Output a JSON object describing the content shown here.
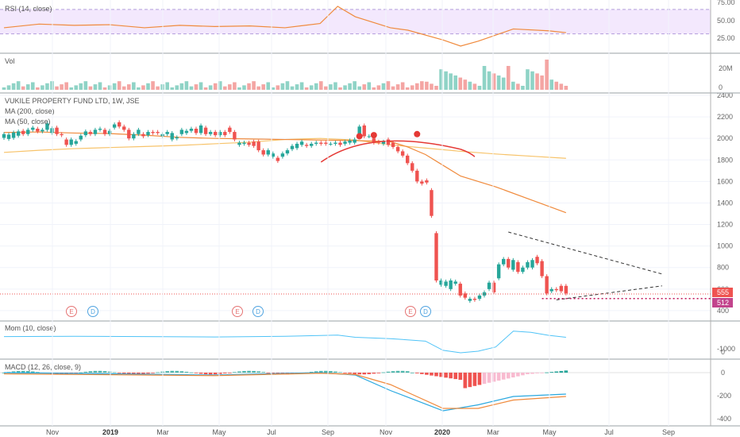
{
  "chart_data": {
    "type": "candlestick",
    "title": "VUKILE PROPERTY FUND LTD, 1W, JSE",
    "price_panel": {
      "ylim": [
        370,
        2400
      ],
      "y_ticks": [
        "400",
        "600",
        "800",
        "1000",
        "1200",
        "1400",
        "1600",
        "1800",
        "2000",
        "2200",
        "2400"
      ],
      "last_price_label": "555",
      "support_label": "512",
      "support_level": 512,
      "last_price": 555,
      "series": [
        {
          "name": "MA (200, close)",
          "color": "#f7c36a"
        },
        {
          "name": "MA (50, close)",
          "color": "#f08a3c"
        }
      ],
      "candles": [
        [
          2005,
          2040
        ],
        [
          1995,
          2035
        ],
        [
          2005,
          2055
        ],
        [
          2025,
          2065
        ],
        [
          2070,
          2040
        ],
        [
          2040,
          2080
        ],
        [
          2080,
          2100
        ],
        [
          2090,
          2065
        ],
        [
          2065,
          2080
        ],
        [
          2080,
          2140
        ],
        [
          2050,
          2095
        ],
        [
          2100,
          2040
        ],
        [
          2040,
          2030
        ],
        [
          1990,
          1940
        ],
        [
          1940,
          1990
        ],
        [
          1950,
          1975
        ],
        [
          1990,
          2025
        ],
        [
          2030,
          2065
        ],
        [
          2060,
          2040
        ],
        [
          2040,
          2080
        ],
        [
          2080,
          2090
        ],
        [
          2080,
          2040
        ],
        [
          2040,
          2070
        ],
        [
          2100,
          2130
        ],
        [
          2150,
          2110
        ],
        [
          2110,
          2080
        ],
        [
          2080,
          2000
        ],
        [
          2000,
          2040
        ],
        [
          2040,
          2080
        ],
        [
          2040,
          2020
        ],
        [
          2030,
          2060
        ],
        [
          2060,
          2050
        ],
        [
          2060,
          2050
        ],
        [
          2020,
          2040
        ],
        [
          2040,
          2060
        ],
        [
          1990,
          2050
        ],
        [
          2000,
          2010
        ],
        [
          2040,
          2080
        ],
        [
          2050,
          2070
        ],
        [
          2070,
          2090
        ],
        [
          2090,
          2050
        ],
        [
          2050,
          2120
        ],
        [
          2100,
          2040
        ],
        [
          2040,
          2060
        ],
        [
          2060,
          2030
        ],
        [
          2030,
          2060
        ],
        [
          2060,
          2030
        ],
        [
          2100,
          2060
        ],
        [
          2060,
          1990
        ],
        [
          1940,
          1960
        ],
        [
          1950,
          1960
        ],
        [
          1960,
          1940
        ],
        [
          1970,
          1930
        ],
        [
          1970,
          1890
        ],
        [
          1890,
          1850
        ],
        [
          1850,
          1890
        ],
        [
          1830,
          1860
        ],
        [
          1820,
          1790
        ],
        [
          1830,
          1860
        ],
        [
          1860,
          1890
        ],
        [
          1900,
          1930
        ],
        [
          1910,
          1950
        ],
        [
          1940,
          1970
        ],
        [
          1940,
          1930
        ],
        [
          1930,
          1950
        ],
        [
          1950,
          1960
        ],
        [
          1960,
          1950
        ],
        [
          1960,
          1950
        ],
        [
          1950,
          1950
        ],
        [
          1950,
          1960
        ],
        [
          1960,
          1940
        ],
        [
          1950,
          1970
        ],
        [
          1960,
          1980
        ],
        [
          1960,
          1990
        ],
        [
          2040,
          2110
        ],
        [
          2120,
          2020
        ],
        [
          2020,
          2020
        ],
        [
          2000,
          1960
        ],
        [
          1970,
          1960
        ],
        [
          1950,
          1970
        ],
        [
          1990,
          1940
        ],
        [
          1960,
          1920
        ],
        [
          1920,
          1880
        ],
        [
          1880,
          1840
        ],
        [
          1840,
          1770
        ],
        [
          1770,
          1700
        ],
        [
          1700,
          1600
        ],
        [
          1600,
          1580
        ],
        [
          1610,
          1590
        ],
        [
          1520,
          1280
        ],
        [
          1120,
          680
        ],
        [
          640,
          680
        ],
        [
          630,
          670
        ],
        [
          600,
          680
        ],
        [
          650,
          670
        ],
        [
          650,
          540
        ],
        [
          560,
          520
        ],
        [
          490,
          510
        ],
        [
          510,
          500
        ],
        [
          510,
          540
        ],
        [
          540,
          570
        ],
        [
          600,
          660
        ],
        [
          660,
          570
        ],
        [
          700,
          830
        ],
        [
          830,
          880
        ],
        [
          880,
          800
        ],
        [
          780,
          870
        ],
        [
          850,
          760
        ],
        [
          760,
          800
        ],
        [
          800,
          850
        ],
        [
          800,
          870
        ],
        [
          900,
          840
        ],
        [
          860,
          720
        ],
        [
          720,
          560
        ],
        [
          580,
          600
        ],
        [
          600,
          590
        ],
        [
          630,
          580
        ],
        [
          630,
          560
        ]
      ],
      "ma200": [
        [
          0,
          1870
        ],
        [
          10,
          1890
        ],
        [
          20,
          1905
        ],
        [
          30,
          1915
        ],
        [
          40,
          1925
        ],
        [
          50,
          1935
        ],
        [
          60,
          1950
        ],
        [
          70,
          1965
        ],
        [
          80,
          1990
        ],
        [
          90,
          2000
        ],
        [
          100,
          1985
        ],
        [
          110,
          1940
        ],
        [
          120,
          1910
        ],
        [
          130,
          1880
        ],
        [
          140,
          1855
        ],
        [
          150,
          1835
        ],
        [
          160,
          1815
        ]
      ],
      "ma50": [
        [
          0,
          2055
        ],
        [
          10,
          2060
        ],
        [
          20,
          2050
        ],
        [
          30,
          2045
        ],
        [
          40,
          2030
        ],
        [
          50,
          2010
        ],
        [
          60,
          2000
        ],
        [
          70,
          1995
        ],
        [
          80,
          1990
        ],
        [
          90,
          1985
        ],
        [
          100,
          1980
        ],
        [
          110,
          1970
        ],
        [
          115,
          1920
        ],
        [
          120,
          1850
        ],
        [
          125,
          1750
        ],
        [
          130,
          1650
        ],
        [
          140,
          1550
        ],
        [
          150,
          1430
        ],
        [
          160,
          1310
        ]
      ]
    },
    "rsi_panel": {
      "name": "RSI (14, close)",
      "y_ticks": [
        "75.00",
        "50.00",
        "25.00"
      ],
      "levels": [
        70,
        30
      ],
      "values": [
        [
          0,
          40
        ],
        [
          10,
          46
        ],
        [
          20,
          44
        ],
        [
          30,
          45
        ],
        [
          40,
          40
        ],
        [
          50,
          44
        ],
        [
          60,
          42
        ],
        [
          70,
          43
        ],
        [
          80,
          40
        ],
        [
          90,
          47
        ],
        [
          95,
          75
        ],
        [
          100,
          58
        ],
        [
          110,
          40
        ],
        [
          115,
          36
        ],
        [
          125,
          20
        ],
        [
          130,
          10
        ],
        [
          135,
          18
        ],
        [
          145,
          38
        ],
        [
          155,
          35
        ],
        [
          160,
          32
        ]
      ]
    },
    "volume_panel": {
      "name": "Vol",
      "y_ticks": [
        "20M",
        "0"
      ],
      "max": 24
    },
    "momentum_panel": {
      "name": "Mom (10, close)",
      "y_ticks": [
        "0",
        "-1000"
      ],
      "values": [
        [
          0,
          -80
        ],
        [
          20,
          -60
        ],
        [
          40,
          -80
        ],
        [
          60,
          -100
        ],
        [
          80,
          -60
        ],
        [
          95,
          10
        ],
        [
          100,
          -120
        ],
        [
          110,
          -200
        ],
        [
          120,
          -350
        ],
        [
          125,
          -900
        ],
        [
          130,
          -1050
        ],
        [
          135,
          -950
        ],
        [
          140,
          -700
        ],
        [
          145,
          250
        ],
        [
          150,
          180
        ],
        [
          155,
          0
        ],
        [
          160,
          -120
        ]
      ]
    },
    "macd_panel": {
      "name": "MACD (12, 26, close, 9)",
      "y_ticks": [
        "0",
        "-200",
        "-400"
      ]
    },
    "x_ticks": [
      {
        "label": "Nov",
        "pos": 66
      },
      {
        "label": "2019",
        "pos": 139,
        "bold": true
      },
      {
        "label": "Mar",
        "pos": 205
      },
      {
        "label": "May",
        "pos": 276
      },
      {
        "label": "Jul",
        "pos": 342
      },
      {
        "label": "Sep",
        "pos": 413
      },
      {
        "label": "Nov",
        "pos": 486
      },
      {
        "label": "2020",
        "pos": 557,
        "bold": true
      },
      {
        "label": "Mar",
        "pos": 621
      },
      {
        "label": "May",
        "pos": 692
      },
      {
        "label": "Jul",
        "pos": 767
      },
      {
        "label": "Sep",
        "pos": 842
      }
    ],
    "event_markers": [
      {
        "label": "E",
        "pos": 90
      },
      {
        "label": "D",
        "pos": 117
      },
      {
        "label": "E",
        "pos": 299
      },
      {
        "label": "D",
        "pos": 325
      },
      {
        "label": "E",
        "pos": 517
      },
      {
        "label": "D",
        "pos": 536
      }
    ]
  }
}
